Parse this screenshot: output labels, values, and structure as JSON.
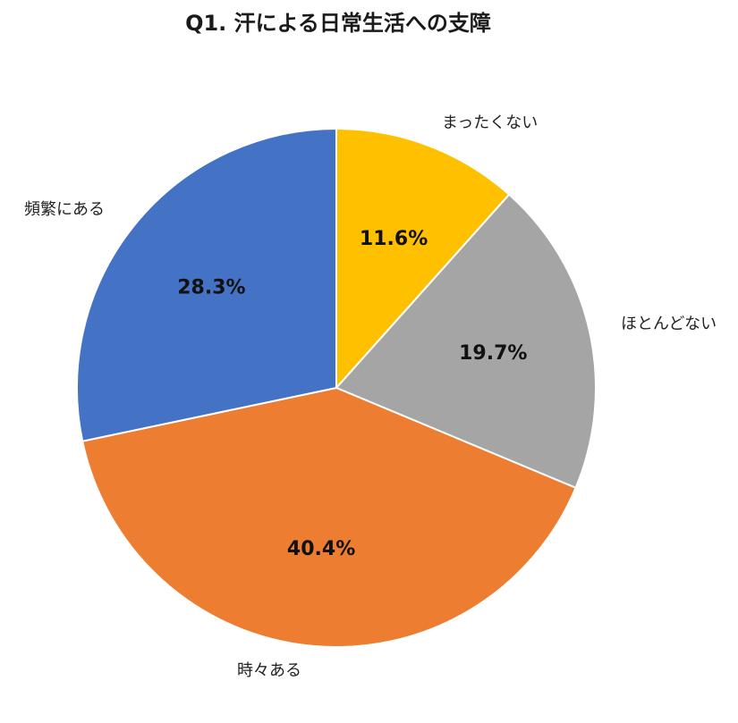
{
  "chart_data": {
    "type": "pie",
    "title": "Q1. 汗による日常生活への支障",
    "start": "12 o'clock",
    "direction": "clockwise",
    "legend": "none",
    "slices": [
      {
        "label": "まったくない",
        "value": 11.6,
        "display": "11.6%",
        "color": "#FFC000"
      },
      {
        "label": "ほとんどない",
        "value": 19.7,
        "display": "19.7%",
        "color": "#A5A5A5"
      },
      {
        "label": "時々ある",
        "value": 40.4,
        "display": "40.4%",
        "color": "#ED7D31"
      },
      {
        "label": "頻繁にある",
        "value": 28.3,
        "display": "28.3%",
        "color": "#4472C4"
      }
    ]
  }
}
